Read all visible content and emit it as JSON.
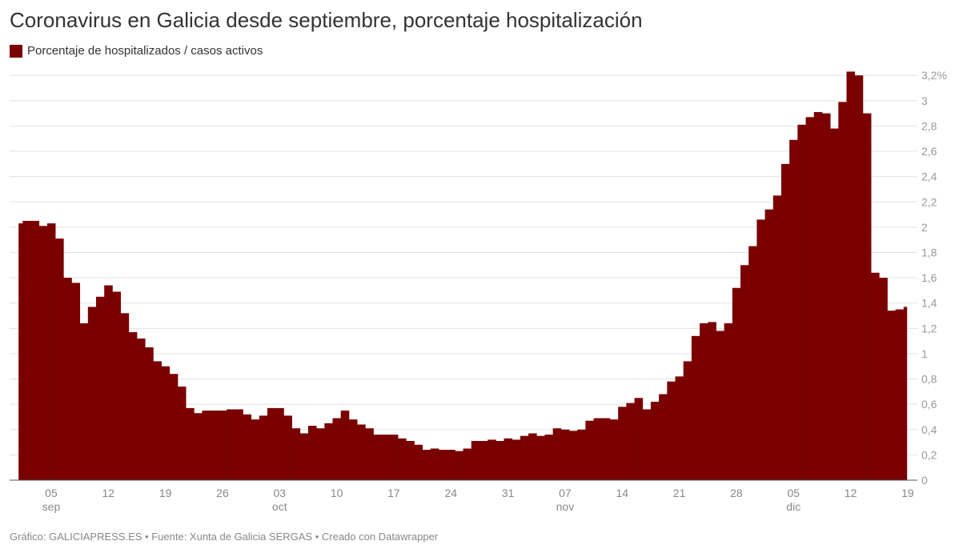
{
  "title": "Coronavirus en Galicia desde septiembre, porcentaje hospitalización",
  "legend": {
    "label": "Porcentaje de hospitalizados / casos activos",
    "color": "#7a0000"
  },
  "footer": "Gráfico: GALICIAPRESS.ES • Fuente: Xunta de Galicia SERGAS • Creado con Datawrapper",
  "chart_data": {
    "type": "bar",
    "title": "Coronavirus en Galicia desde septiembre, porcentaje hospitalización",
    "series": [
      {
        "name": "Porcentaje de hospitalizados / casos activos",
        "color": "#7a0000"
      }
    ],
    "months": [
      {
        "name": "sep",
        "values": [
          2.03,
          2.05,
          2.05,
          2.01,
          2.03,
          1.91,
          1.6,
          1.56,
          1.24,
          1.37,
          1.45,
          1.54,
          1.49,
          1.32,
          1.17,
          1.12,
          1.05,
          0.94,
          0.9,
          0.84,
          0.74,
          0.57,
          0.53,
          0.55,
          0.55,
          0.55,
          0.56,
          0.56,
          0.52,
          0.48
        ]
      },
      {
        "name": "oct",
        "values": [
          0.51,
          0.57,
          0.57,
          0.51,
          0.41,
          0.37,
          0.43,
          0.41,
          0.45,
          0.49,
          0.55,
          0.48,
          0.44,
          0.41,
          0.36,
          0.36,
          0.36,
          0.33,
          0.31,
          0.28,
          0.24,
          0.25,
          0.24,
          0.24,
          0.23,
          0.25,
          0.31,
          0.31,
          0.32,
          0.31,
          0.33
        ]
      },
      {
        "name": "nov",
        "values": [
          0.32,
          0.35,
          0.37,
          0.35,
          0.36,
          0.41,
          0.4,
          0.39,
          0.4,
          0.47,
          0.49,
          0.49,
          0.48,
          0.58,
          0.61,
          0.65,
          0.56,
          0.62,
          0.68,
          0.78,
          0.82,
          0.94,
          1.14,
          1.24,
          1.25,
          1.18,
          1.24,
          1.52,
          1.7,
          1.85
        ]
      },
      {
        "name": "dic",
        "values": [
          2.06,
          2.14,
          2.25,
          2.5,
          2.69,
          2.81,
          2.87,
          2.91,
          2.9,
          2.78,
          2.99,
          3.23,
          3.2,
          2.9,
          1.64,
          1.6,
          1.34,
          1.35,
          1.37
        ]
      }
    ],
    "ylim": [
      0,
      3.2
    ],
    "y_ticks": [
      "0",
      "0,2",
      "0,4",
      "0,6",
      "0,8",
      "1",
      "1,2",
      "1,4",
      "1,6",
      "1,8",
      "2",
      "2,2",
      "2,4",
      "2,6",
      "2,8",
      "3",
      "3,2%"
    ],
    "x_ticks": [
      {
        "day": "05",
        "month": "sep"
      },
      {
        "day": "12"
      },
      {
        "day": "19"
      },
      {
        "day": "26"
      },
      {
        "day": "03",
        "month": "oct"
      },
      {
        "day": "10"
      },
      {
        "day": "17"
      },
      {
        "day": "24"
      },
      {
        "day": "31"
      },
      {
        "day": "07",
        "month": "nov"
      },
      {
        "day": "14"
      },
      {
        "day": "21"
      },
      {
        "day": "28"
      },
      {
        "day": "05",
        "month": "dic"
      },
      {
        "day": "12"
      },
      {
        "day": "19"
      }
    ],
    "y_axis_position": "right",
    "grid": true,
    "legend_position": "top-left"
  }
}
